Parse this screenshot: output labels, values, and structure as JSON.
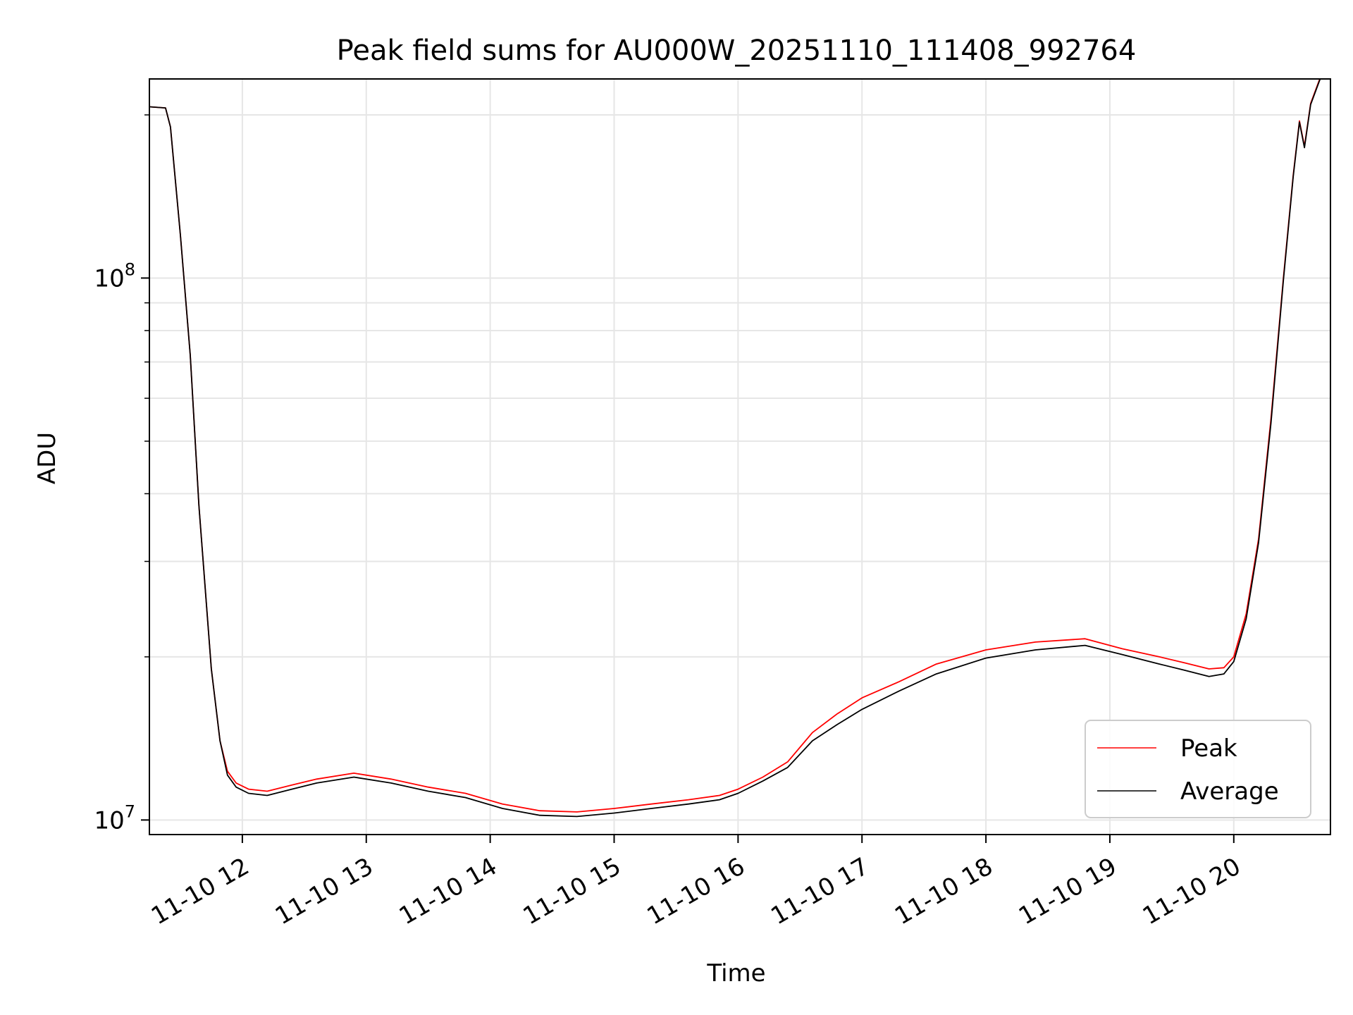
{
  "chart_data": {
    "type": "line",
    "title": "Peak field sums for AU000W_20251110_111408_992764",
    "xlabel": "Time",
    "ylabel": "ADU",
    "yscale": "log",
    "ylim": [
      9400000,
      233000000
    ],
    "xlim_hours": [
      11.25,
      20.78
    ],
    "grid": true,
    "legend_position": "lower-right",
    "x_ticks": [
      {
        "hour": 12,
        "label": "11-10 12"
      },
      {
        "hour": 13,
        "label": "11-10 13"
      },
      {
        "hour": 14,
        "label": "11-10 14"
      },
      {
        "hour": 15,
        "label": "11-10 15"
      },
      {
        "hour": 16,
        "label": "11-10 16"
      },
      {
        "hour": 17,
        "label": "11-10 17"
      },
      {
        "hour": 18,
        "label": "11-10 18"
      },
      {
        "hour": 19,
        "label": "11-10 19"
      },
      {
        "hour": 20,
        "label": "11-10 20"
      }
    ],
    "y_ticks": [
      {
        "value": 10000000,
        "label_base": "10",
        "label_exp": "7"
      },
      {
        "value": 100000000,
        "label_base": "10",
        "label_exp": "8"
      }
    ],
    "series": [
      {
        "name": "Peak",
        "color": "#ff0000",
        "x_hours": [
          11.25,
          11.38,
          11.42,
          11.5,
          11.58,
          11.65,
          11.75,
          11.82,
          11.88,
          11.95,
          12.05,
          12.2,
          12.4,
          12.6,
          12.9,
          13.2,
          13.5,
          13.8,
          14.1,
          14.4,
          14.7,
          15.0,
          15.3,
          15.6,
          15.85,
          16.0,
          16.2,
          16.4,
          16.6,
          16.8,
          17.0,
          17.3,
          17.6,
          18.0,
          18.4,
          18.8,
          19.1,
          19.4,
          19.6,
          19.8,
          19.92,
          20.0,
          20.1,
          20.2,
          20.3,
          20.4,
          20.48,
          20.53,
          20.57,
          20.62,
          20.7
        ],
        "values": [
          207000000,
          206000000,
          190000000,
          120000000,
          72000000,
          38000000,
          19000000,
          14000000,
          12300000,
          11700000,
          11400000,
          11300000,
          11600000,
          11900000,
          12200000,
          11900000,
          11500000,
          11200000,
          10700000,
          10400000,
          10350000,
          10500000,
          10700000,
          10900000,
          11100000,
          11400000,
          12000000,
          12800000,
          14500000,
          15700000,
          16800000,
          18000000,
          19400000,
          20600000,
          21300000,
          21600000,
          20700000,
          20000000,
          19500000,
          19000000,
          19100000,
          20000000,
          24000000,
          33000000,
          55000000,
          100000000,
          155000000,
          195000000,
          175000000,
          210000000,
          235000000
        ]
      },
      {
        "name": "Average",
        "color": "#000000",
        "x_hours": [
          11.25,
          11.38,
          11.42,
          11.5,
          11.58,
          11.65,
          11.75,
          11.82,
          11.88,
          11.95,
          12.05,
          12.2,
          12.4,
          12.6,
          12.9,
          13.2,
          13.5,
          13.8,
          14.1,
          14.4,
          14.7,
          15.0,
          15.3,
          15.6,
          15.85,
          16.0,
          16.2,
          16.4,
          16.6,
          16.8,
          17.0,
          17.3,
          17.6,
          18.0,
          18.4,
          18.8,
          19.1,
          19.4,
          19.6,
          19.8,
          19.92,
          20.0,
          20.1,
          20.2,
          20.3,
          20.4,
          20.48,
          20.53,
          20.57,
          20.62,
          20.7
        ],
        "values": [
          207000000,
          206000000,
          190000000,
          120000000,
          72000000,
          38000000,
          19000000,
          14000000,
          12100000,
          11500000,
          11200000,
          11100000,
          11400000,
          11700000,
          12000000,
          11700000,
          11300000,
          11000000,
          10500000,
          10200000,
          10150000,
          10300000,
          10500000,
          10700000,
          10900000,
          11200000,
          11800000,
          12500000,
          14000000,
          15000000,
          16000000,
          17300000,
          18600000,
          19900000,
          20600000,
          21000000,
          20200000,
          19400000,
          18900000,
          18400000,
          18600000,
          19600000,
          23500000,
          32500000,
          54000000,
          99000000,
          154000000,
          194000000,
          174000000,
          209000000,
          234000000
        ]
      }
    ],
    "legend": [
      {
        "name": "Peak",
        "color": "#ff0000"
      },
      {
        "name": "Average",
        "color": "#000000"
      }
    ]
  }
}
